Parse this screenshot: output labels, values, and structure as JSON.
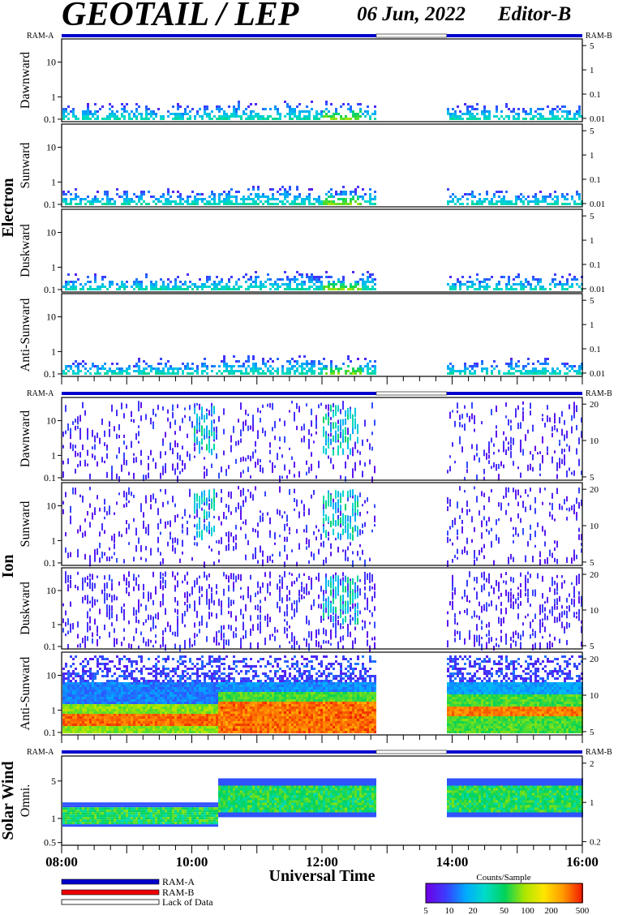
{
  "header": {
    "title": "GEOTAIL / LEP",
    "date": "06 Jun, 2022",
    "editor": "Editor-B"
  },
  "chart_data": {
    "type": "heatmap",
    "xlabel": "Universal Time",
    "x_ticks": [
      "08:00",
      "10:00",
      "12:00",
      "14:00",
      "16:00"
    ],
    "x_range": [
      "08:00",
      "16:00"
    ],
    "data_gap": [
      "12:50",
      "13:55"
    ],
    "mode_bar": {
      "left": "RAM-A",
      "right": "RAM-B"
    },
    "groups": [
      {
        "name": "Electron",
        "panels": [
          {
            "label": "Dawnward",
            "yticks": [
              "10",
              "1",
              "0.1"
            ],
            "rticks": [
              "5",
              "1",
              "0.1",
              "0.01"
            ]
          },
          {
            "label": "Sunward",
            "yticks": [
              "10",
              "1",
              "0.1"
            ],
            "rticks": [
              "5",
              "1",
              "0.1",
              "0.01"
            ]
          },
          {
            "label": "Duskward",
            "yticks": [
              "10",
              "1",
              "0.1"
            ],
            "rticks": [
              "5",
              "1",
              "0.1",
              "0.01"
            ]
          },
          {
            "label": "Anti-Sunward",
            "yticks": [
              "10",
              "1",
              "0.1"
            ],
            "rticks": [
              "5",
              "1",
              "0.1",
              "0.01"
            ]
          }
        ]
      },
      {
        "name": "Ion",
        "panels": [
          {
            "label": "Dawnward",
            "yticks": [
              "10",
              "1",
              "0.1"
            ],
            "rticks": [
              "20",
              "10",
              "5"
            ]
          },
          {
            "label": "Sunward",
            "yticks": [
              "10",
              "1",
              "0.1"
            ],
            "rticks": [
              "20",
              "10",
              "5"
            ]
          },
          {
            "label": "Duskward",
            "yticks": [
              "10",
              "1",
              "0.1"
            ],
            "rticks": [
              "20",
              "10",
              "5"
            ]
          },
          {
            "label": "Anti-Sunward",
            "yticks": [
              "10",
              "1",
              "0.1"
            ],
            "rticks": [
              "20",
              "10",
              "5"
            ]
          }
        ]
      },
      {
        "name": "Solar Wind",
        "panels": [
          {
            "label": "Omni.",
            "yticks": [
              "5",
              "1",
              "0.5"
            ],
            "rticks": [
              "2",
              "1",
              "0.2"
            ]
          }
        ]
      }
    ],
    "legend": {
      "ram_a": "RAM-A",
      "ram_b": "RAM-B",
      "lack": "Lack of Data"
    },
    "colorbar": {
      "title": "Counts/Sample",
      "ticks": [
        "5",
        "10",
        "20",
        "50",
        "100",
        "200",
        "500"
      ]
    }
  },
  "colors": {
    "ram_a": "#0000cc",
    "ram_b": "#ee0000",
    "gap": "#ffffff"
  }
}
